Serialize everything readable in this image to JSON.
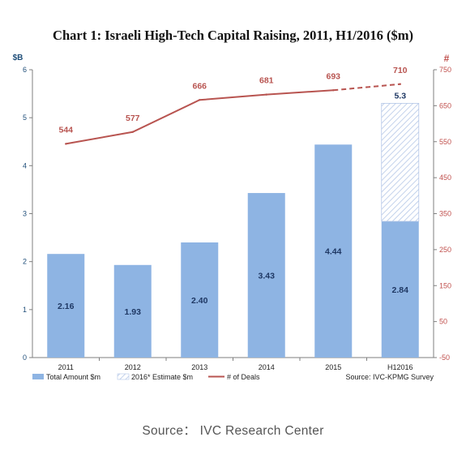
{
  "chart_data": {
    "type": "bar",
    "title": "Chart 1: Israeli High-Tech Capital Raising, 2011, H1/2016 ($m)",
    "categories": [
      "2011",
      "2012",
      "2013",
      "2014",
      "2015",
      "H12016"
    ],
    "left_axis": {
      "unit": "$B",
      "min": 0,
      "max": 6,
      "ticks": [
        "0",
        "1",
        "2",
        "3",
        "4",
        "5",
        "6"
      ]
    },
    "right_axis": {
      "unit": "#",
      "min": -50,
      "max": 750,
      "ticks": [
        "-50",
        "50",
        "150",
        "250",
        "350",
        "450",
        "550",
        "650",
        "750"
      ]
    },
    "series": [
      {
        "name": "Total Amount $m",
        "type": "bar",
        "axis": "left",
        "color": "#8eb4e3",
        "values": [
          2.16,
          1.93,
          2.4,
          3.43,
          4.44,
          2.84
        ],
        "labels": [
          "2.16",
          "1.93",
          "2.40",
          "3.43",
          "4.44",
          "2.84"
        ]
      },
      {
        "name": "2016* Estimate $m",
        "type": "bar-stacked-hatched",
        "axis": "left",
        "color": "#b4c7e7",
        "category": "H12016",
        "total": 5.3,
        "total_label": "5.3"
      },
      {
        "name": "# of Deals",
        "type": "line",
        "axis": "right",
        "color": "#b85450",
        "values": [
          544,
          577,
          666,
          681,
          693,
          710
        ],
        "labels": [
          "544",
          "577",
          "666",
          "681",
          "693",
          "710"
        ],
        "dashed_last_segment": true
      }
    ],
    "legend_placement": "bottom-left",
    "note": "Source: IVC-KPMG Survey",
    "grid": false
  },
  "footer": {
    "source": "Source：  IVC Research Center"
  }
}
